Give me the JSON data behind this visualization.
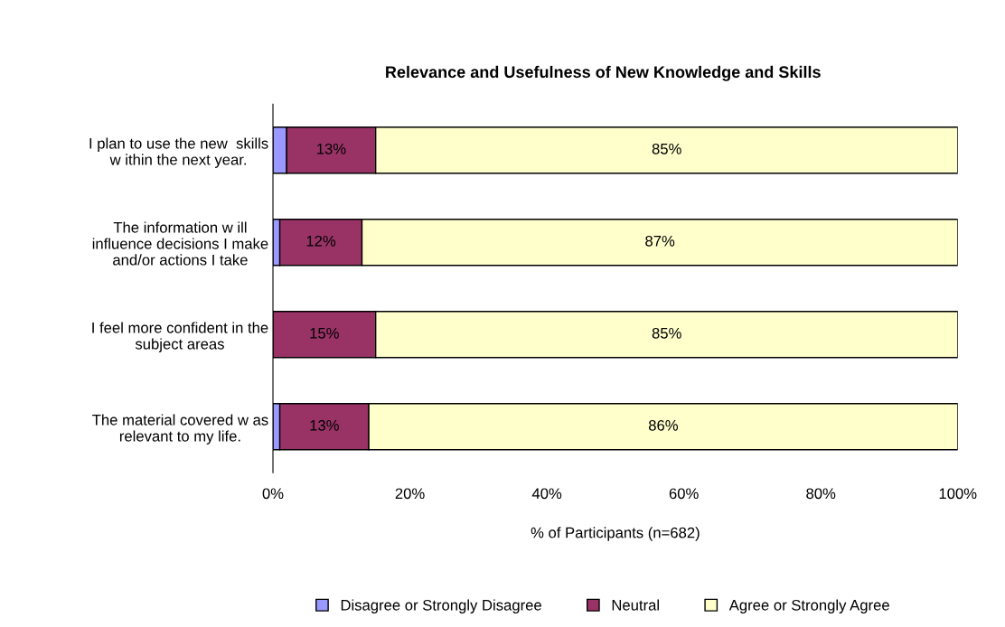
{
  "chart_data": {
    "type": "bar",
    "orientation": "horizontal",
    "stacked": true,
    "title": "Relevance and Usefulness of New Knowledge and Skills",
    "xlabel": "% of Participants (n=682)",
    "categories": [
      "I plan to use the new  skills\nw ithin the next year.",
      "The information w ill\ninfluence decisions I make\nand/or actions I take",
      "I feel more confident in the\nsubject areas",
      "The material covered w as\nrelevant to my life."
    ],
    "series": [
      {
        "name": "Disagree or Strongly Disagree",
        "color": "#9999ff",
        "values": [
          2,
          1,
          0,
          1
        ],
        "value_labels": [
          null,
          null,
          null,
          null
        ]
      },
      {
        "name": "Neutral",
        "color": "#993366",
        "values": [
          13,
          12,
          15,
          13
        ],
        "value_labels": [
          "13%",
          "12%",
          "15%",
          "13%"
        ]
      },
      {
        "name": "Agree or Strongly Agree",
        "color": "#ffffcc",
        "values": [
          85,
          87,
          85,
          86
        ],
        "value_labels": [
          "85%",
          "87%",
          "85%",
          "86%"
        ]
      }
    ],
    "xlim": [
      0,
      100
    ],
    "xticks": [
      {
        "value": 0,
        "label": "0%"
      },
      {
        "value": 20,
        "label": "20%"
      },
      {
        "value": 40,
        "label": "40%"
      },
      {
        "value": 60,
        "label": "60%"
      },
      {
        "value": 80,
        "label": "80%"
      },
      {
        "value": 100,
        "label": "100%"
      }
    ],
    "grid": false,
    "legend": "bottom"
  }
}
